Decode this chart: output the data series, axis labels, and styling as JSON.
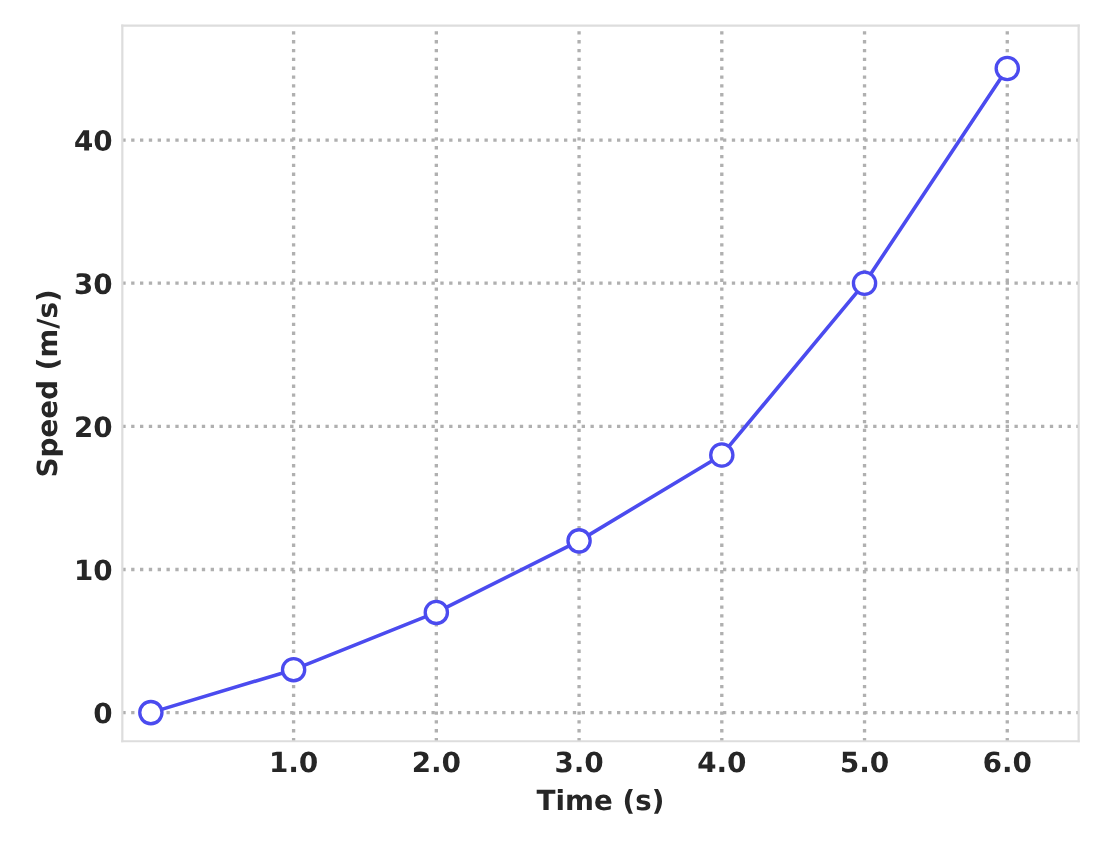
{
  "chart_data": {
    "type": "line",
    "xlabel": "Time (s)",
    "ylabel": "Speed (m/s)",
    "x": [
      0,
      1,
      2,
      3,
      4,
      5,
      6
    ],
    "series": [
      {
        "color": "#4b4bef",
        "values": [
          0,
          3,
          7,
          12,
          18,
          30,
          45
        ]
      }
    ],
    "xlim": [
      -0.2,
      6.5
    ],
    "xticks": [
      {
        "value": 1,
        "label": "1.0"
      },
      {
        "value": 2,
        "label": "2.0"
      },
      {
        "value": 3,
        "label": "3.0"
      },
      {
        "value": 4,
        "label": "4.0"
      },
      {
        "value": 5,
        "label": "5.0"
      },
      {
        "value": 6,
        "label": "6.0"
      }
    ],
    "ylim": [
      -2,
      48
    ],
    "yticks": [
      0,
      10,
      20,
      30,
      40
    ],
    "grid": true,
    "marker": "circle",
    "line_style": "solid"
  }
}
